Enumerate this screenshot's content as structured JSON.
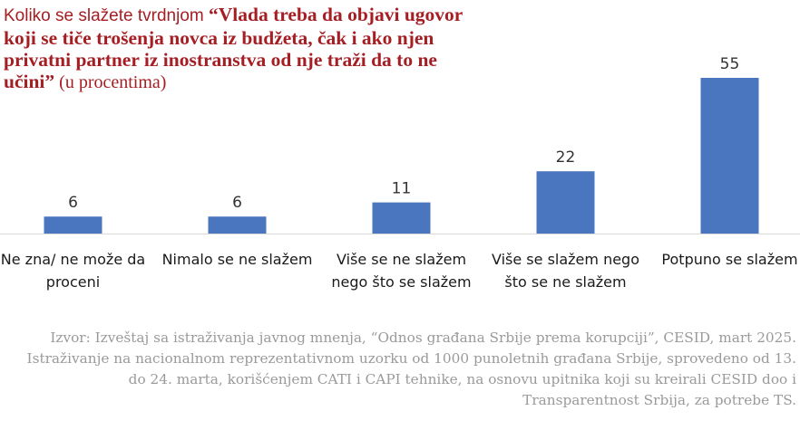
{
  "title": {
    "lead": "Koliko se slažete tvrdnjom ",
    "quote": "“Vlada treba da objavi ugovor koji se tiče trošenja novca iz budžeta, čak i ako njen privatni partner iz inostranstva od nje traži da to ne učini”",
    "tail": " (u procentima)"
  },
  "chart_data": {
    "type": "bar",
    "categories": [
      "Ne zna/ ne može da proceni",
      "Nimalo se ne slažem",
      "Više se ne slažem nego što se slažem",
      "Više se slažem nego što se ne slažem",
      "Potpuno se slažem"
    ],
    "values": [
      6,
      6,
      11,
      22,
      55
    ],
    "title": "Koliko se slažete tvrdnjom “Vlada treba da objavi ugovor koji se tiče trošenja novca iz budžeta, čak i ako njen privatni partner iz inostranstva od nje traži da to ne učini” (u procentima)",
    "ylim": [
      0,
      55
    ],
    "grid": false,
    "legend": "none",
    "bar_color": "#4a76c0"
  },
  "source": "Izvor: Izveštaj sa istraživanja javnog mnenja, “Odnos građana Srbije prema korupciji”, CESID, mart 2025. Istraživanje na nacionalnom reprezentativnom uzorku od 1000 punoletnih građana Srbije, sprovedeno od 13. do 24. marta, korišćenjem CATI i CAPI tehnike, na osnovu upitnika koji su kreirali CESID doo i Transparentnost Srbija, za potrebe TS."
}
